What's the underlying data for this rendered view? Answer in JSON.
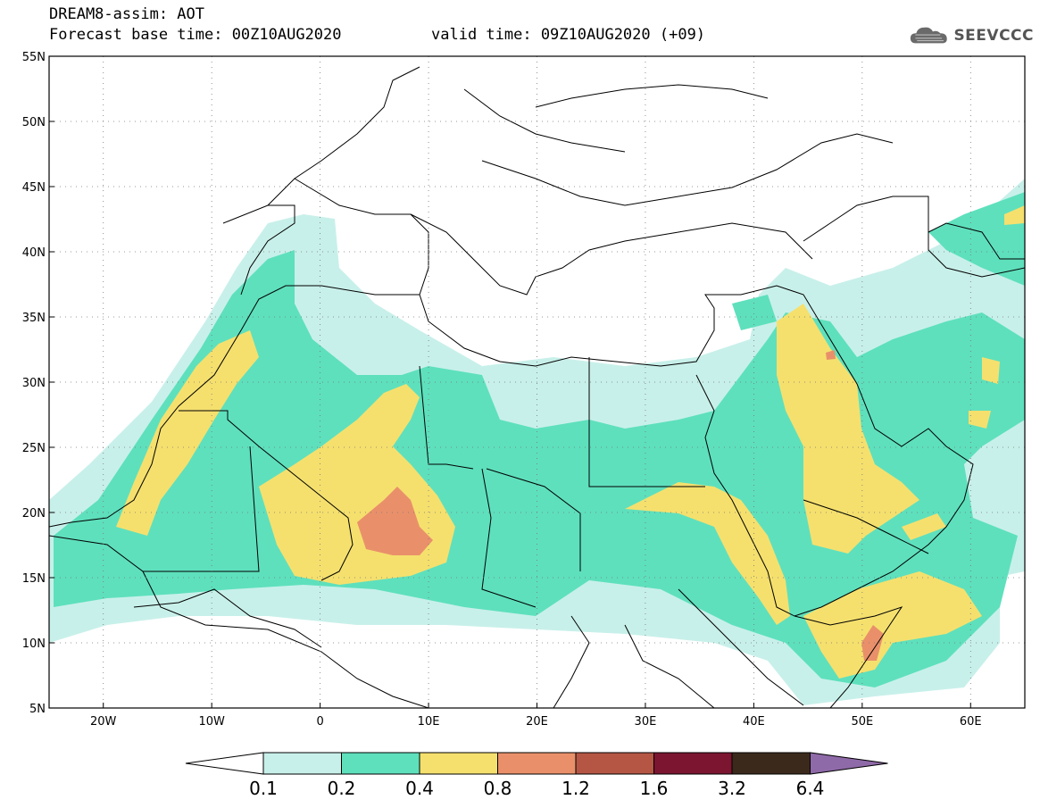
{
  "header": {
    "title": "DREAM8-assim: AOT",
    "base_time_line": "Forecast base time: 00Z10AUG2020",
    "valid_line": "valid time: 09Z10AUG2020 (+09)",
    "logo_text": "SEEVCCC"
  },
  "map": {
    "region": "North Africa, Middle East and Europe",
    "lon_range": [
      -25,
      65
    ],
    "lat_range": [
      5,
      55
    ],
    "lat_labels": [
      "55N",
      "50N",
      "45N",
      "40N",
      "35N",
      "30N",
      "25N",
      "20N",
      "15N",
      "10N",
      "5N"
    ],
    "lon_labels": [
      "20W",
      "10W",
      "0",
      "10E",
      "20E",
      "30E",
      "40E",
      "50E",
      "60E"
    ]
  },
  "colorbar": {
    "ticks": [
      "0.1",
      "0.2",
      "0.4",
      "0.8",
      "1.2",
      "1.6",
      "3.2",
      "6.4"
    ],
    "colors": [
      "#c8f0ea",
      "#5ee0bd",
      "#f5e06e",
      "#e9906a",
      "#b55645",
      "#7b1530",
      "#3b2a1c",
      "#8f6aa8"
    ],
    "under_color": "#ffffff"
  }
}
